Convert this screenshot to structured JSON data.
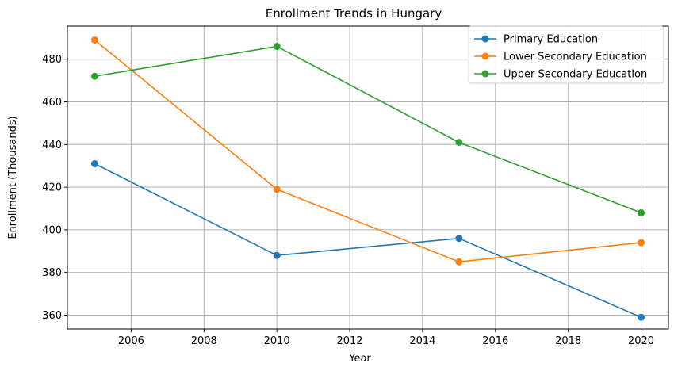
{
  "chart_data": {
    "type": "line",
    "title": "Enrollment Trends in Hungary",
    "xlabel": "Year",
    "ylabel": "Enrollment (Thousands)",
    "x": [
      2005,
      2010,
      2015,
      2020
    ],
    "xlim": [
      2004.25,
      2020.75
    ],
    "ylim": [
      353.5,
      495.5
    ],
    "xticks": [
      2006,
      2008,
      2010,
      2012,
      2014,
      2016,
      2018,
      2020
    ],
    "yticks": [
      360,
      380,
      400,
      420,
      440,
      460,
      480
    ],
    "grid": true,
    "legend_position": "top-right",
    "series": [
      {
        "name": "Primary Education",
        "color": "#1f77b4",
        "values": [
          431,
          388,
          396,
          359
        ]
      },
      {
        "name": "Lower Secondary Education",
        "color": "#ff7f0e",
        "values": [
          489,
          419,
          385,
          394
        ]
      },
      {
        "name": "Upper Secondary Education",
        "color": "#2ca02c",
        "values": [
          472,
          486,
          441,
          408
        ]
      }
    ]
  }
}
